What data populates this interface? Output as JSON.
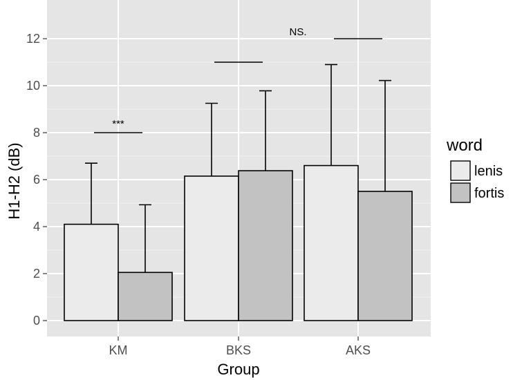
{
  "chart_data": {
    "type": "bar",
    "title": "",
    "xlabel": "Group",
    "ylabel": "H1-H2 (dB)",
    "categories": [
      "KM",
      "BKS",
      "AKS"
    ],
    "ylim": [
      0,
      13.2
    ],
    "yticks": [
      0,
      2,
      4,
      6,
      8,
      10,
      12
    ],
    "ytick_labels": [
      "0",
      "2",
      "4",
      "6",
      "8",
      "10",
      "12"
    ],
    "grid": true,
    "legend": {
      "title": "word",
      "position": "right"
    },
    "series": [
      {
        "name": "lenis",
        "color": "#ebebeb",
        "values": [
          4.1,
          6.15,
          6.6
        ],
        "error_upper": [
          6.7,
          9.25,
          10.9
        ]
      },
      {
        "name": "fortis",
        "color": "#c2c2c2",
        "values": [
          2.05,
          6.38,
          5.5
        ],
        "error_upper": [
          4.93,
          9.78,
          10.22
        ]
      }
    ],
    "annotations": [
      {
        "category": "KM",
        "text": "***",
        "y": 8.0
      },
      {
        "category": "BKS",
        "text": "",
        "y": 11.0
      },
      {
        "category": "AKS",
        "text": "NS.",
        "y": 12.0
      }
    ],
    "colors": {
      "panel": "#e5e5e5",
      "grid_major": "#ffffff",
      "bar_stroke": "#000000"
    }
  }
}
